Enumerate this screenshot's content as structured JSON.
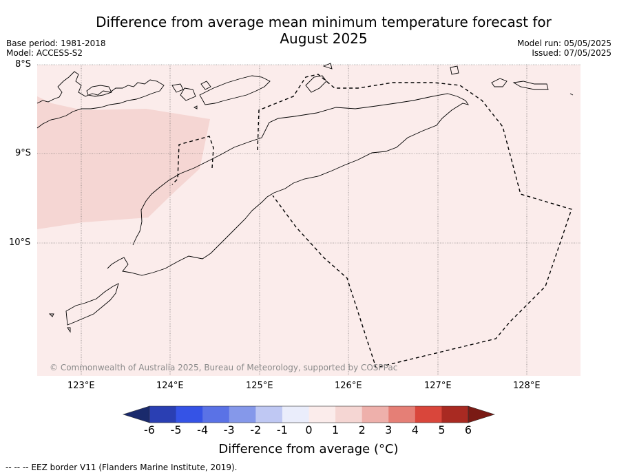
{
  "title_line1": "Difference from average mean minimum temperature forecast for",
  "title_line2": "August 2025",
  "base_period": "Base period: 1981-2018",
  "model": "Model: ACCESS-S2",
  "model_run": "Model run: 05/05/2025",
  "issued": "Issued: 07/05/2025",
  "lat_labels": [
    "8°S",
    "9°S",
    "10°S"
  ],
  "lon_labels": [
    "123°E",
    "124°E",
    "125°E",
    "126°E",
    "127°E",
    "128°E"
  ],
  "copyright": "© Commonwealth of Australia 2025, Bureau of Meteorology, supported by COSPPac",
  "colorbar": {
    "ticks": [
      "-6",
      "-5",
      "-4",
      "-3",
      "-2",
      "-1",
      "0",
      "1",
      "2",
      "3",
      "4",
      "5",
      "6"
    ],
    "label": "Difference from average (°C)",
    "colors": [
      "#1a2a6c",
      "#2a3fb3",
      "#3553e6",
      "#5a72e6",
      "#8598ea",
      "#bfc8f3",
      "#eaedfb",
      "#fbeceb",
      "#f5d6d3",
      "#eeb0ab",
      "#e57f76",
      "#d9463b",
      "#a92a22",
      "#7a1a14"
    ]
  },
  "footnote": "--  --  -- EEZ border V11 (Flanders Marine Institute, 2019).",
  "map_colors": {
    "background": "#fbeceb",
    "warm_region": "#f5d6d3"
  }
}
